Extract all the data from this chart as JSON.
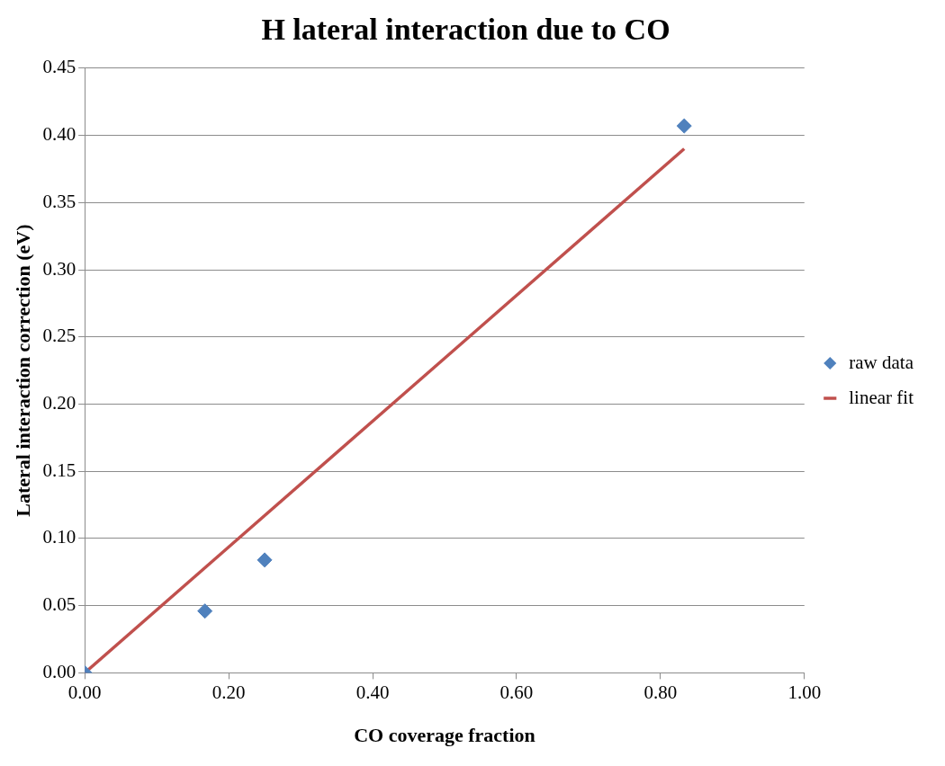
{
  "chart_data": {
    "type": "scatter",
    "title": "H lateral interaction due to CO",
    "xlabel": "CO coverage fraction",
    "ylabel": "Lateral interaction correction (eV)",
    "series": [
      {
        "name": "raw data",
        "type": "scatter",
        "color": "#4f81bd",
        "marker": "diamond",
        "x": [
          0,
          0.167,
          0.25,
          0.833
        ],
        "values": [
          0,
          0.046,
          0.084,
          0.407
        ]
      },
      {
        "name": "linear fit",
        "type": "line",
        "color": "#c0504d",
        "marker": "none",
        "line_style": "solid",
        "x": [
          0,
          0.833
        ],
        "values": [
          0,
          0.39
        ]
      }
    ],
    "xlim": [
      0,
      1
    ],
    "xticks": [
      {
        "value": 0,
        "label": "0.00"
      },
      {
        "value": 0.2,
        "label": "0.20"
      },
      {
        "value": 0.4,
        "label": "0.40"
      },
      {
        "value": 0.6,
        "label": "0.60"
      },
      {
        "value": 0.8,
        "label": "0.80"
      },
      {
        "value": 1,
        "label": "1.00"
      }
    ],
    "ylim": [
      0,
      0.45
    ],
    "yticks": [
      {
        "value": 0,
        "label": "0.00"
      },
      {
        "value": 0.05,
        "label": "0.05"
      },
      {
        "value": 0.1,
        "label": "0.10"
      },
      {
        "value": 0.15,
        "label": "0.15"
      },
      {
        "value": 0.2,
        "label": "0.20"
      },
      {
        "value": 0.25,
        "label": "0.25"
      },
      {
        "value": 0.3,
        "label": "0.30"
      },
      {
        "value": 0.35,
        "label": "0.35"
      },
      {
        "value": 0.4,
        "label": "0.40"
      },
      {
        "value": 0.45,
        "label": "0.45"
      }
    ],
    "grid": "y",
    "legend": "right"
  }
}
